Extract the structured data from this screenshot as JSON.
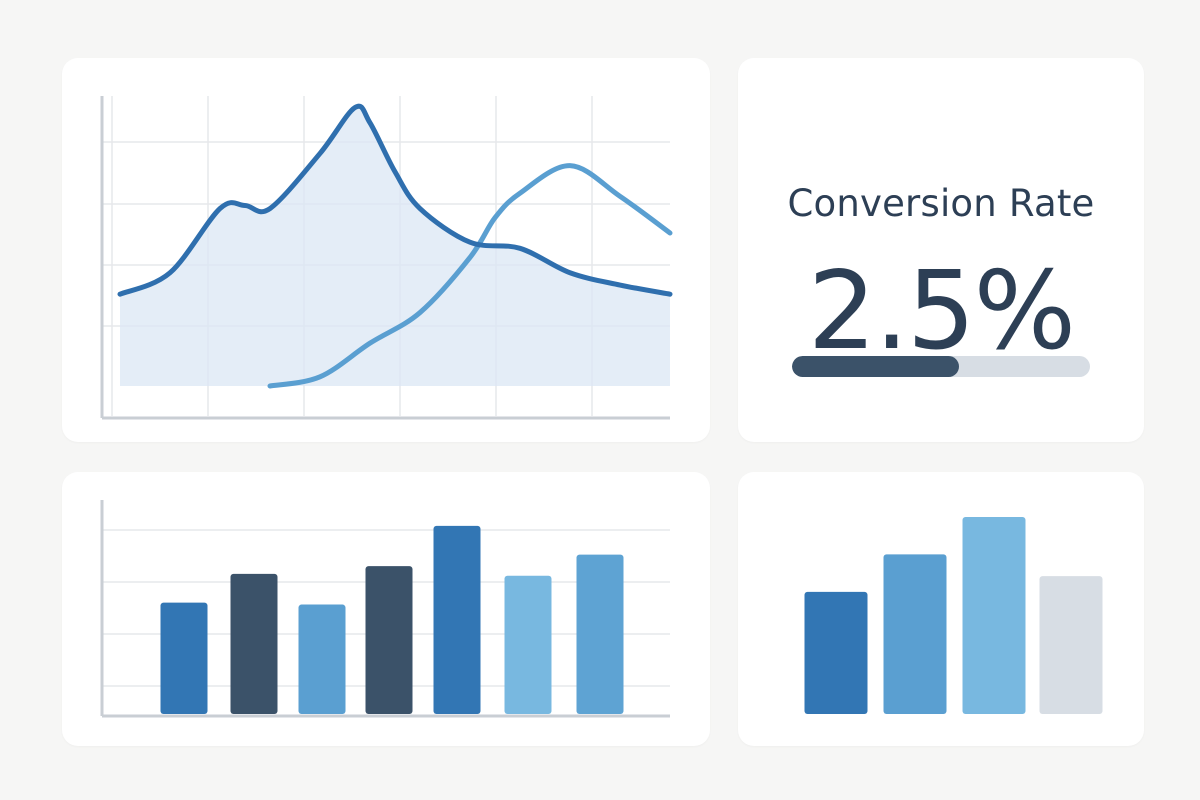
{
  "colors": {
    "background": "#f6f6f5",
    "card": "#ffffff",
    "grid": "#e6e8eb",
    "axis": "#c9ced4",
    "navy": "#3b5269",
    "blue_dark": "#2f6fae",
    "blue_mid": "#5a9fd1",
    "blue_light": "#78b8e0",
    "gray": "#d7dde4",
    "area_fill": "#dbe7f4"
  },
  "kpi": {
    "title": "Conversion Rate",
    "value": "2.5%",
    "progress_fraction": 0.56
  },
  "chart_data": [
    {
      "type": "area",
      "ylim": [
        0,
        100
      ],
      "xlim": [
        0,
        11
      ],
      "grid": true,
      "series": [
        {
          "color": "#2f6fae",
          "filled": true,
          "x": [
            0,
            1,
            2,
            2.5,
            3,
            4,
            4.7,
            5,
            5.5,
            6,
            7,
            8,
            9,
            10,
            11
          ],
          "values": [
            30,
            37,
            58,
            59,
            58,
            76,
            91,
            86,
            70,
            58,
            47,
            45,
            37,
            33,
            30
          ]
        },
        {
          "color": "#5a9fd1",
          "filled": false,
          "x": [
            3,
            4,
            5,
            6,
            7,
            7.5,
            8,
            9,
            10,
            11
          ],
          "values": [
            0,
            3,
            14,
            24,
            42,
            55,
            63,
            72,
            62,
            50
          ]
        }
      ]
    },
    {
      "type": "bar",
      "ylim": [
        0,
        100
      ],
      "grid": true,
      "categories": [
        "",
        "",
        "",
        "",
        "",
        "",
        ""
      ],
      "values": [
        58,
        73,
        57,
        77,
        98,
        72,
        83
      ],
      "colors": [
        "#3276b4",
        "#3b5269",
        "#5a9fd1",
        "#3b5269",
        "#3276b4",
        "#78b8e0",
        "#5ea3d3"
      ]
    },
    {
      "type": "bar",
      "ylim": [
        0,
        100
      ],
      "grid": false,
      "categories": [
        "",
        "",
        "",
        ""
      ],
      "values": [
        62,
        81,
        100,
        70
      ],
      "colors": [
        "#3276b4",
        "#5a9fd1",
        "#78b8e0",
        "#d7dde4"
      ]
    }
  ]
}
